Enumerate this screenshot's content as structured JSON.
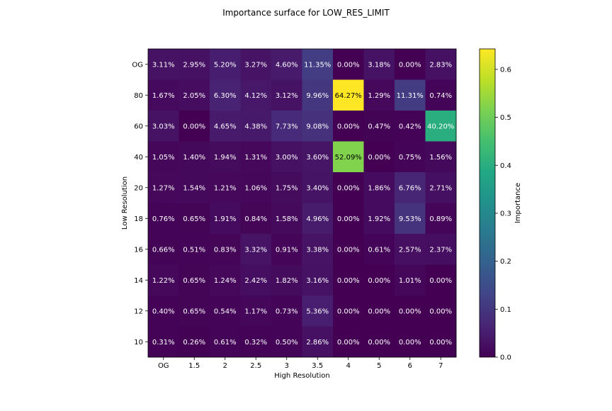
{
  "chart_data": {
    "type": "heatmap",
    "title": "Importance surface for LOW_RES_LIMIT",
    "xlabel": "High Resolution",
    "ylabel": "Low Resolution",
    "x_categories": [
      "OG",
      "1.5",
      "2",
      "2.5",
      "3",
      "3.5",
      "4",
      "5",
      "6",
      "7"
    ],
    "y_categories": [
      "OG",
      "80",
      "60",
      "40",
      "20",
      "18",
      "16",
      "14",
      "12",
      "10"
    ],
    "values": [
      [
        3.11,
        2.95,
        5.2,
        3.27,
        4.6,
        11.35,
        0.0,
        3.18,
        0.0,
        2.83
      ],
      [
        1.67,
        2.05,
        6.3,
        4.12,
        3.12,
        9.96,
        64.27,
        1.29,
        11.31,
        0.74
      ],
      [
        3.03,
        0.0,
        4.65,
        4.38,
        7.73,
        9.08,
        0.0,
        0.47,
        0.42,
        40.2
      ],
      [
        1.05,
        1.4,
        1.94,
        1.31,
        3.0,
        3.6,
        52.09,
        0.0,
        0.75,
        1.56
      ],
      [
        1.27,
        1.54,
        1.21,
        1.06,
        1.75,
        3.4,
        0.0,
        1.86,
        6.76,
        2.71
      ],
      [
        0.76,
        0.65,
        1.91,
        0.84,
        1.58,
        4.96,
        0.0,
        1.92,
        9.53,
        0.89
      ],
      [
        0.66,
        0.51,
        0.83,
        3.32,
        0.91,
        3.38,
        0.0,
        0.61,
        2.57,
        2.37
      ],
      [
        1.22,
        0.65,
        1.24,
        2.42,
        1.82,
        3.16,
        0.0,
        0.0,
        1.01,
        0.0
      ],
      [
        0.4,
        0.65,
        0.54,
        1.17,
        0.73,
        5.36,
        0.0,
        0.0,
        0.0,
        0.0
      ],
      [
        0.31,
        0.26,
        0.61,
        0.32,
        0.5,
        2.86,
        0.0,
        0.0,
        0.0,
        0.0
      ]
    ],
    "value_unit": "%",
    "colormap": "viridis",
    "colorbar": {
      "label": "Importance",
      "range": [
        0,
        0.6427
      ],
      "ticks": [
        "0.0",
        "0.1",
        "0.2",
        "0.3",
        "0.4",
        "0.5",
        "0.6"
      ]
    },
    "grid": false
  }
}
